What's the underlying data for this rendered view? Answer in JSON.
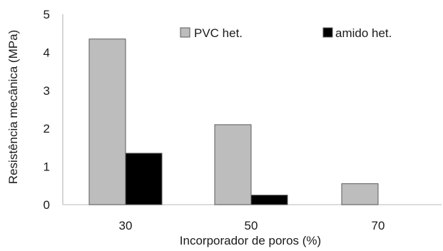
{
  "chart_data": {
    "type": "bar",
    "xlabel": "Incorporador de poros (%)",
    "ylabel": "Resistência mecânica (MPa)",
    "categories": [
      "30",
      "50",
      "70"
    ],
    "series": [
      {
        "name": "PVC het.",
        "values": [
          4.35,
          2.1,
          0.55
        ],
        "color": "#bdbdbd"
      },
      {
        "name": "amido het.",
        "values": [
          1.35,
          0.25,
          0
        ],
        "color": "#000000"
      }
    ],
    "ylim": [
      0,
      5
    ],
    "yticks": [
      "0",
      "1",
      "2",
      "3",
      "4",
      "5"
    ],
    "grid": false,
    "legend_position": "top-right"
  }
}
